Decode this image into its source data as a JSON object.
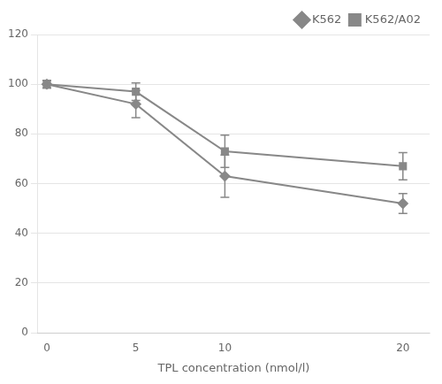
{
  "chart_data": {
    "type": "line",
    "xlabel": "TPL concentration (nmol/l)",
    "x": [
      0,
      5,
      10,
      20
    ],
    "series": [
      {
        "name": "K562",
        "color": "#888888",
        "marker": "diamond",
        "values": [
          100,
          92,
          63,
          52
        ],
        "errors": [
          1.5,
          5.5,
          8.5,
          4.0
        ]
      },
      {
        "name": "K562/A02",
        "color": "#888888",
        "marker": "square",
        "values": [
          100,
          97,
          73,
          67
        ],
        "errors": [
          1.5,
          3.5,
          6.5,
          5.5
        ]
      }
    ],
    "xlim": [
      -0.5,
      21.5
    ],
    "xticks": [
      0,
      5,
      10,
      20
    ],
    "ylim": [
      0,
      120
    ],
    "yticks": [
      0,
      20,
      40,
      60,
      80,
      100,
      120
    ],
    "grid": "y",
    "legend": "upper right"
  }
}
